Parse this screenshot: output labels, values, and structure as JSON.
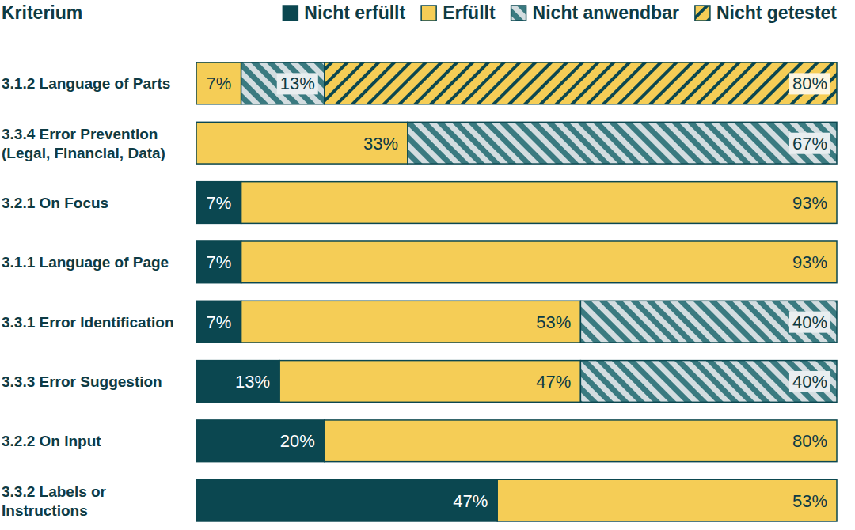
{
  "chart_data": {
    "type": "bar",
    "orientation": "horizontal",
    "stacked": true,
    "data_labels": true,
    "tick_labels": false,
    "legend": "top",
    "y_label": "Kriterium",
    "xlim": [
      0,
      100
    ],
    "categories": [
      "3.1.2 Language of Parts",
      "3.3.4 Error Prevention (Legal, Financial, Data)",
      "3.2.1 On Focus",
      "3.1.1 Language of Page",
      "3.3.1 Error Identification",
      "3.3.3 Error Suggestion",
      "3.2.2 On Input",
      "3.3.2 Labels or Instructions"
    ],
    "series": [
      {
        "name": "Nicht erfüllt",
        "color": "#0b4750",
        "values": [
          0,
          0,
          7,
          7,
          7,
          13,
          20,
          47
        ],
        "value_labels": [
          null,
          null,
          "7%",
          "7%",
          "7%",
          "13%",
          "20%",
          "47%"
        ]
      },
      {
        "name": "Erfüllt",
        "color": "#f5cd56",
        "values": [
          7,
          33,
          93,
          93,
          53,
          47,
          80,
          53
        ],
        "value_labels": [
          "7%",
          "33%",
          "93%",
          "93%",
          "53%",
          "47%",
          "80%",
          "53%"
        ]
      },
      {
        "name": "Nicht anwendbar",
        "color": "#d3dde0",
        "values": [
          13,
          67,
          0,
          0,
          40,
          40,
          0,
          0
        ],
        "value_labels": [
          "13%",
          "67%",
          null,
          null,
          "40%",
          "40%",
          null,
          null
        ]
      },
      {
        "name": "Nicht getestet",
        "color": "#f5cd56",
        "values": [
          80,
          0,
          0,
          0,
          0,
          0,
          0,
          0
        ],
        "value_labels": [
          "80%",
          null,
          null,
          null,
          null,
          null,
          null,
          null
        ]
      }
    ]
  }
}
